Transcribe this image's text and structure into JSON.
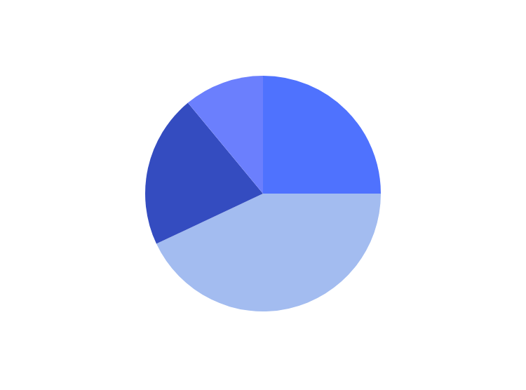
{
  "chart_data": {
    "type": "pie",
    "categories": [
      null,
      null,
      null,
      null
    ],
    "values": [
      25,
      43,
      21,
      11
    ],
    "colors": [
      "#4f72fe",
      "#a3bcf0",
      "#344cc0",
      "#6b7ffd"
    ]
  }
}
